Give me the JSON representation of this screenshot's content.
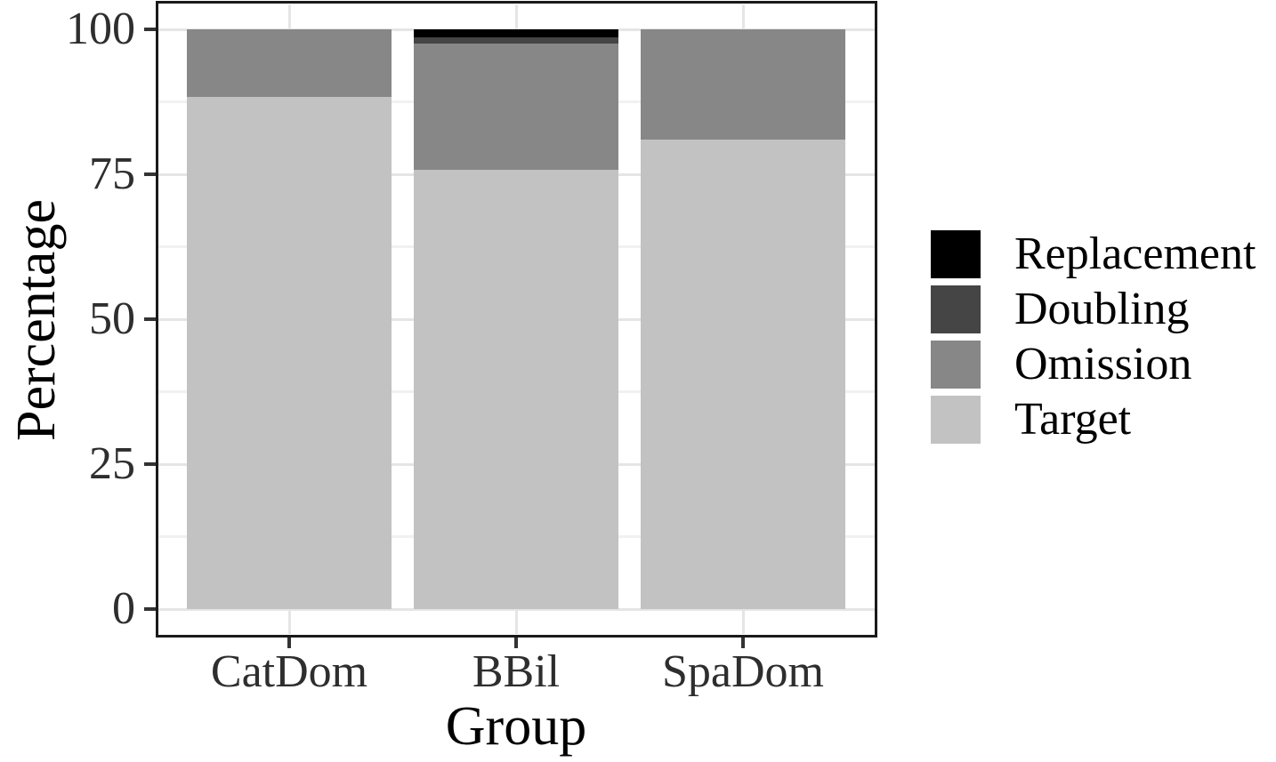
{
  "figure": {
    "ylabel": "Percentage",
    "xlabel": "Group"
  },
  "chart_data": {
    "type": "bar",
    "stacked": true,
    "title": "",
    "xlabel": "Group",
    "ylabel": "Percentage",
    "categories": [
      "CatDom",
      "BBil",
      "SpaDom"
    ],
    "series": [
      {
        "name": "Target",
        "color": "#c2c2c2",
        "values": [
          88.4,
          75.7,
          81.0
        ]
      },
      {
        "name": "Omission",
        "color": "#878787",
        "values": [
          11.6,
          21.8,
          19.0
        ]
      },
      {
        "name": "Doubling",
        "color": "#454545",
        "values": [
          0,
          1.1,
          0
        ]
      },
      {
        "name": "Replacement",
        "color": "#000000",
        "values": [
          0,
          1.4,
          0
        ]
      }
    ],
    "legend": {
      "position": "right",
      "order": [
        "Replacement",
        "Doubling",
        "Omission",
        "Target"
      ]
    },
    "ylim": [
      0,
      100
    ],
    "yticks": [
      0,
      25,
      50,
      75,
      100
    ],
    "minor_gridlines": [
      12.5,
      37.5,
      62.5,
      87.5
    ],
    "grid": true,
    "colors": {
      "grid_major": "#e5e5e5",
      "grid_minor": "#f1f1f1",
      "panel_border": "#1a1a1a",
      "tick_mark": "#333333",
      "axis_text": "#2e2e2e",
      "axis_title": "#000000"
    }
  }
}
